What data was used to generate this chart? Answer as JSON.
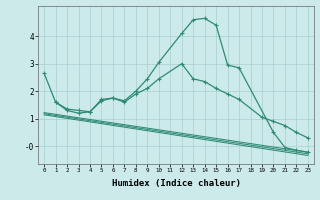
{
  "xlabel": "Humidex (Indice chaleur)",
  "series": {
    "main": {
      "x": [
        0,
        1,
        2,
        3,
        4,
        5,
        6,
        7,
        8,
        9,
        10,
        12,
        13,
        14,
        15,
        16,
        17,
        20,
        21,
        22,
        23
      ],
      "y": [
        2.65,
        1.6,
        1.3,
        1.2,
        1.25,
        1.65,
        1.75,
        1.65,
        2.0,
        2.45,
        3.05,
        4.1,
        4.6,
        4.65,
        4.4,
        2.95,
        2.85,
        0.5,
        -0.05,
        -0.15,
        -0.22
      ]
    },
    "upper": {
      "x": [
        1,
        2,
        3,
        4,
        5,
        6,
        7,
        8,
        9,
        10,
        12,
        13,
        14,
        15,
        16,
        17,
        19,
        20,
        21,
        22,
        23
      ],
      "y": [
        1.6,
        1.35,
        1.3,
        1.25,
        1.7,
        1.75,
        1.6,
        1.9,
        2.1,
        2.45,
        3.0,
        2.45,
        2.35,
        2.1,
        1.9,
        1.7,
        1.05,
        0.9,
        0.75,
        0.5,
        0.3
      ]
    },
    "diag1": {
      "x": [
        0,
        23
      ],
      "y": [
        1.22,
        -0.22
      ]
    },
    "diag2": {
      "x": [
        0,
        23
      ],
      "y": [
        1.18,
        -0.28
      ]
    },
    "diag3": {
      "x": [
        0,
        23
      ],
      "y": [
        1.14,
        -0.34
      ]
    }
  },
  "color": "#2e8b72",
  "bg_color": "#cdeaea",
  "grid_color": "#a8cece",
  "ylim": [
    -0.65,
    5.1
  ],
  "xlim": [
    -0.5,
    23.5
  ],
  "yticks": [
    0,
    1,
    2,
    3,
    4
  ],
  "ytick_labels": [
    "-0",
    "1",
    "2",
    "3",
    "4"
  ],
  "xticks": [
    0,
    1,
    2,
    3,
    4,
    5,
    6,
    7,
    8,
    9,
    10,
    11,
    12,
    13,
    14,
    15,
    16,
    17,
    18,
    19,
    20,
    21,
    22,
    23
  ]
}
